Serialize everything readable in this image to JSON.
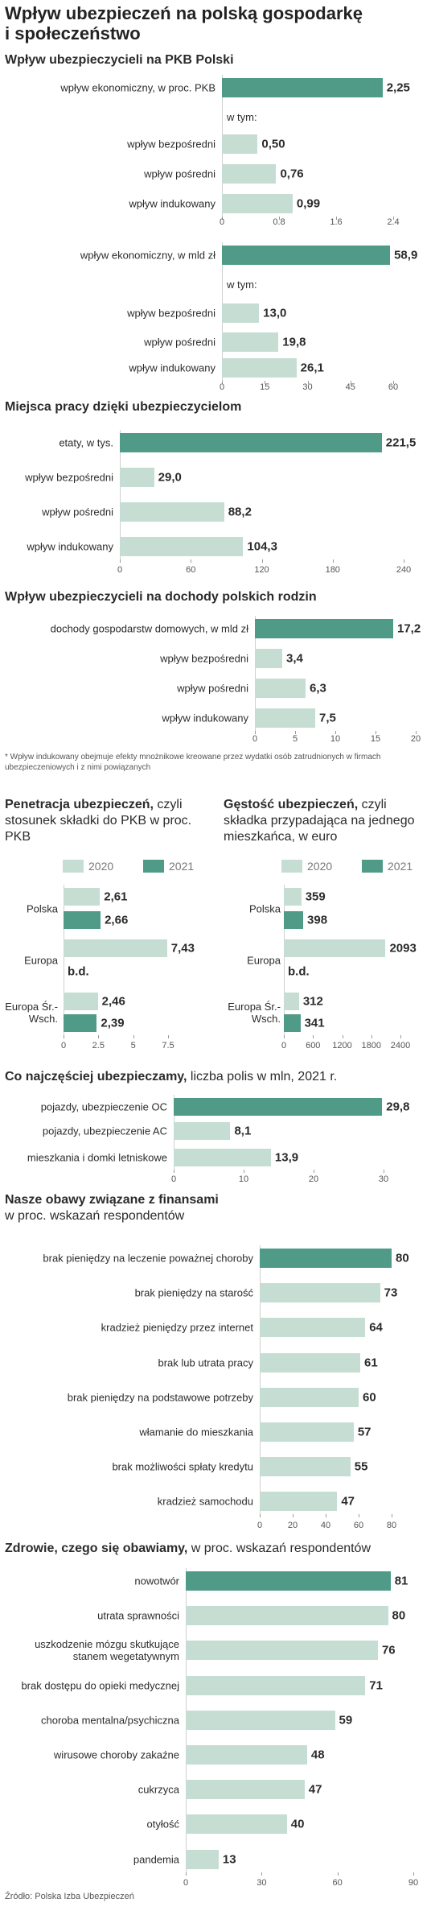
{
  "title": "Wpływ ubezpieczeń na polską gospodarkę i społeczeństwo",
  "source": "Źródło: Polska Izba Ubezpieczeń",
  "chart_data": [
    {
      "type": "bar",
      "title": "Wpływ ubezpieczycieli na PKB Polski",
      "group_label": "w tym:",
      "categories": [
        "wpływ ekonomiczny, w proc. PKB",
        "wpływ bezpośredni",
        "wpływ pośredni",
        "wpływ indukowany"
      ],
      "values": [
        2.25,
        0.5,
        0.76,
        0.99
      ],
      "value_labels": [
        "2,25",
        "0,50",
        "0,76",
        "0,99"
      ],
      "colors": [
        "#4f9b88",
        "#c6ddd3",
        "#c6ddd3",
        "#c6ddd3"
      ],
      "xlim": [
        0,
        2.4
      ],
      "xticks": [
        0,
        0.8,
        1.6,
        2.4
      ]
    },
    {
      "type": "bar",
      "group_label": "w tym:",
      "categories": [
        "wpływ ekonomiczny, w mld zł",
        "wpływ bezpośredni",
        "wpływ pośredni",
        "wpływ indukowany"
      ],
      "values": [
        58.9,
        13.0,
        19.8,
        26.1
      ],
      "value_labels": [
        "58,9",
        "13,0",
        "19,8",
        "26,1"
      ],
      "colors": [
        "#4f9b88",
        "#c6ddd3",
        "#c6ddd3",
        "#c6ddd3"
      ],
      "xlim": [
        0,
        60
      ],
      "xticks": [
        0,
        15,
        30,
        45,
        60
      ]
    },
    {
      "type": "bar",
      "title": "Miejsca pracy dzięki ubezpieczycielom",
      "categories": [
        "etaty, w tys.",
        "wpływ bezpośredni",
        "wpływ pośredni",
        "wpływ indukowany"
      ],
      "values": [
        221.5,
        29.0,
        88.2,
        104.3
      ],
      "value_labels": [
        "221,5",
        "29,0",
        "88,2",
        "104,3"
      ],
      "colors": [
        "#4f9b88",
        "#c6ddd3",
        "#c6ddd3",
        "#c6ddd3"
      ],
      "xlim": [
        0,
        240
      ],
      "xticks": [
        0,
        60,
        120,
        180,
        240
      ]
    },
    {
      "type": "bar",
      "title": "Wpływ ubezpieczycieli na dochody polskich rodzin",
      "categories": [
        "dochody gospodarstw domowych, w mld zł",
        "wpływ bezpośredni",
        "wpływ pośredni",
        "wpływ indukowany"
      ],
      "values": [
        17.2,
        3.4,
        6.3,
        7.5
      ],
      "value_labels": [
        "17,2",
        "3,4",
        "6,3",
        "7,5"
      ],
      "colors": [
        "#4f9b88",
        "#c6ddd3",
        "#c6ddd3",
        "#c6ddd3"
      ],
      "xlim": [
        0,
        20
      ],
      "xticks": [
        0,
        5,
        10,
        15,
        20
      ],
      "note": "* Wpływ indukowany obejmuje efekty mnożnikowe kreowane przez wydatki osób zatrudnionych w firmach ubezpieczeniowych i z nimi powiązanych"
    },
    {
      "type": "grouped_bar",
      "title": "Penetracja ubezpieczeń,",
      "subtitle": "czyli stosunek składki do PKB w proc. PKB",
      "categories": [
        "Polska",
        "Europa",
        "Europa Śr.-Wsch."
      ],
      "series": [
        {
          "name": "2020",
          "color": "#c6ddd3",
          "values": [
            2.61,
            7.43,
            2.46
          ],
          "value_labels": [
            "2,61",
            "7,43",
            "2,46"
          ]
        },
        {
          "name": "2021",
          "color": "#4f9b88",
          "values": [
            2.66,
            null,
            2.39
          ],
          "value_labels": [
            "2,66",
            "b.d.",
            "2,39"
          ]
        }
      ],
      "xlim": [
        0,
        7.5
      ],
      "xticks": [
        0,
        2.5,
        5,
        7.5
      ]
    },
    {
      "type": "grouped_bar",
      "title": "Gęstość ubezpieczeń,",
      "subtitle": "czyli składka przypadająca na jednego mieszkańca, w euro",
      "categories": [
        "Polska",
        "Europa",
        "Europa Śr.-Wsch."
      ],
      "series": [
        {
          "name": "2020",
          "color": "#c6ddd3",
          "values": [
            359,
            2093,
            312
          ]
        },
        {
          "name": "2021",
          "color": "#4f9b88",
          "values": [
            398,
            null,
            341
          ],
          "value_labels": [
            "398",
            "b.d.",
            "341"
          ]
        }
      ],
      "xlim": [
        0,
        2400
      ],
      "xticks": [
        0,
        600,
        1200,
        1800,
        2400
      ]
    },
    {
      "type": "bar",
      "title": "Co najczęściej ubezpieczamy,",
      "subtitle": "liczba polis w mln, 2021 r.",
      "categories": [
        "pojazdy, ubezpieczenie OC",
        "pojazdy, ubezpieczenie AC",
        "mieszkania i domki letniskowe"
      ],
      "values": [
        29.8,
        8.1,
        13.9
      ],
      "value_labels": [
        "29,8",
        "8,1",
        "13,9"
      ],
      "colors": [
        "#4f9b88",
        "#c6ddd3",
        "#c6ddd3"
      ],
      "xlim": [
        0,
        30
      ],
      "xticks": [
        0,
        10,
        20,
        30
      ]
    },
    {
      "type": "bar",
      "title": "Nasze obawy związane z finansami",
      "subtitle": "w proc. wskazań respondentów",
      "categories": [
        "brak pieniędzy na leczenie poważnej choroby",
        "brak pieniędzy na starość",
        "kradzież pieniędzy przez internet",
        "brak lub utrata pracy",
        "brak pieniędzy na podstawowe potrzeby",
        "włamanie do mieszkania",
        "brak możliwości spłaty kredytu",
        "kradzież samochodu"
      ],
      "values": [
        80,
        73,
        64,
        61,
        60,
        57,
        55,
        47
      ],
      "colors": [
        "#4f9b88",
        "#c6ddd3",
        "#c6ddd3",
        "#c6ddd3",
        "#c6ddd3",
        "#c6ddd3",
        "#c6ddd3",
        "#c6ddd3"
      ],
      "xlim": [
        0,
        80
      ],
      "xticks": [
        0,
        20,
        40,
        60,
        80
      ]
    },
    {
      "type": "bar",
      "title": "Zdrowie, czego się obawiamy,",
      "subtitle": "w proc. wskazań respondentów",
      "categories": [
        "nowotwór",
        "utrata sprawności",
        "uszkodzenie mózgu skutkujące stanem wegetatywnym",
        "brak dostępu do opieki medycznej",
        "choroba mentalna/psychiczna",
        "wirusowe choroby zakaźne",
        "cukrzyca",
        "otyłość",
        "pandemia"
      ],
      "values": [
        81,
        80,
        76,
        71,
        59,
        48,
        47,
        40,
        13
      ],
      "colors": [
        "#4f9b88",
        "#c6ddd3",
        "#c6ddd3",
        "#c6ddd3",
        "#c6ddd3",
        "#c6ddd3",
        "#c6ddd3",
        "#c6ddd3",
        "#c6ddd3"
      ],
      "xlim": [
        0,
        90
      ],
      "xticks": [
        0,
        30,
        60,
        90
      ]
    }
  ]
}
